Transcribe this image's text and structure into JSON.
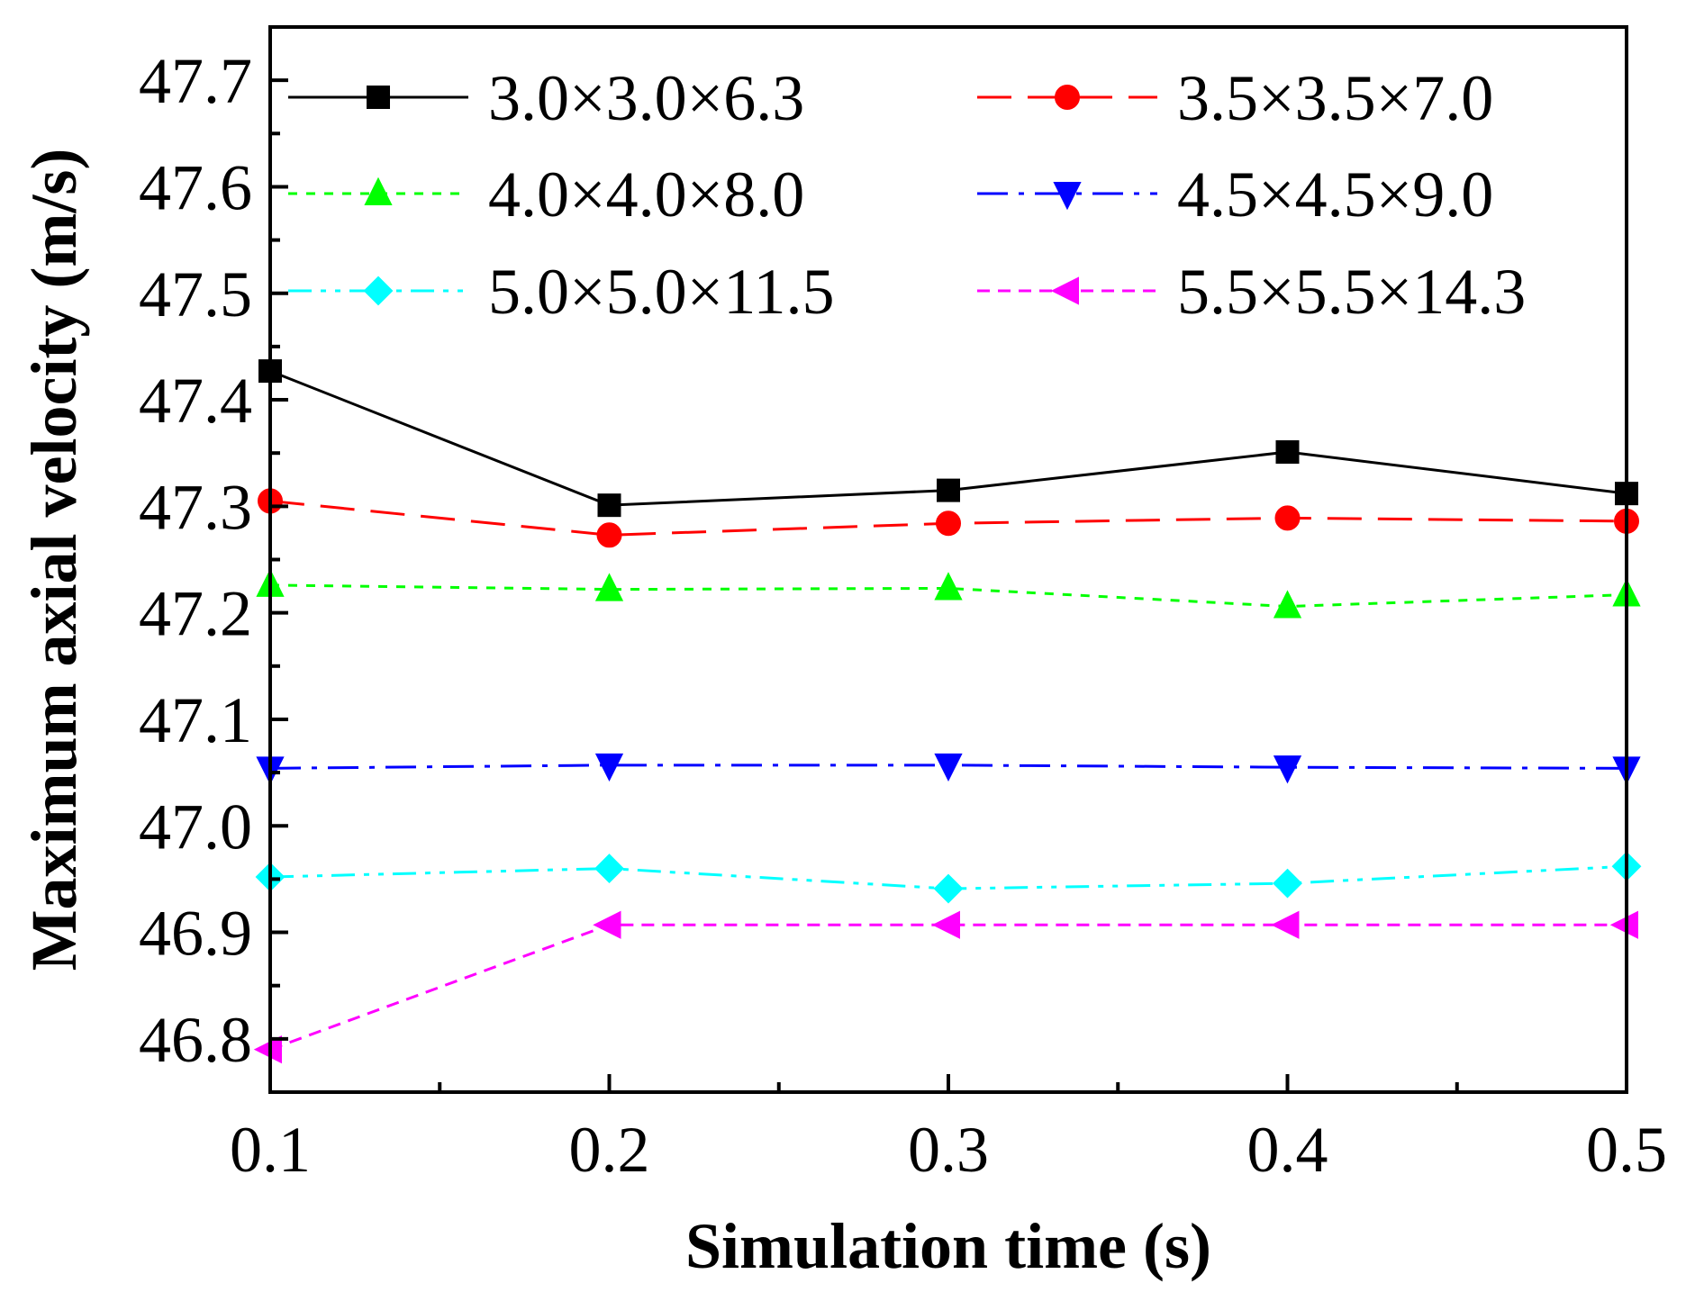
{
  "chart_data": {
    "type": "line",
    "title": "",
    "xlabel": "Simulation time (s)",
    "ylabel": "Maximum axial velocity (m/s)",
    "x": [
      0.1,
      0.2,
      0.3,
      0.4,
      0.5
    ],
    "x_tick_labels": [
      "0.1",
      "0.2",
      "0.3",
      "0.4",
      "0.5"
    ],
    "y_tick_labels": [
      "46.8",
      "46.9",
      "47.0",
      "47.1",
      "47.2",
      "47.3",
      "47.4",
      "47.5",
      "47.6",
      "47.7"
    ],
    "xlim": [
      0.1,
      0.5
    ],
    "ylim": [
      46.75,
      47.75
    ],
    "grid": false,
    "legend_position": "top",
    "series": [
      {
        "name": "3.0×3.0×6.3",
        "values": [
          47.427,
          47.301,
          47.315,
          47.351,
          47.312
        ],
        "color": "#000000",
        "marker": "square",
        "line_style": "solid"
      },
      {
        "name": "3.5×3.5×7.0",
        "values": [
          47.305,
          47.273,
          47.284,
          47.289,
          47.286
        ],
        "color": "#ff0000",
        "marker": "circle",
        "line_style": "dash"
      },
      {
        "name": "4.0×4.0×8.0",
        "values": [
          47.226,
          47.222,
          47.223,
          47.206,
          47.217
        ],
        "color": "#00ff00",
        "marker": "triangle-up",
        "line_style": "dot"
      },
      {
        "name": "4.5×4.5×9.0",
        "values": [
          47.054,
          47.057,
          47.057,
          47.055,
          47.054
        ],
        "color": "#0000ff",
        "marker": "triangle-down",
        "line_style": "dash-dot"
      },
      {
        "name": "5.0×5.0×11.5",
        "values": [
          46.952,
          46.96,
          46.941,
          46.946,
          46.962
        ],
        "color": "#00ffff",
        "marker": "diamond",
        "line_style": "dash-dot-dot"
      },
      {
        "name": "5.5×5.5×14.3",
        "values": [
          46.79,
          46.907,
          46.907,
          46.907,
          46.907
        ],
        "color": "#ff00ff",
        "marker": "triangle-left",
        "line_style": "short-dash"
      }
    ]
  }
}
